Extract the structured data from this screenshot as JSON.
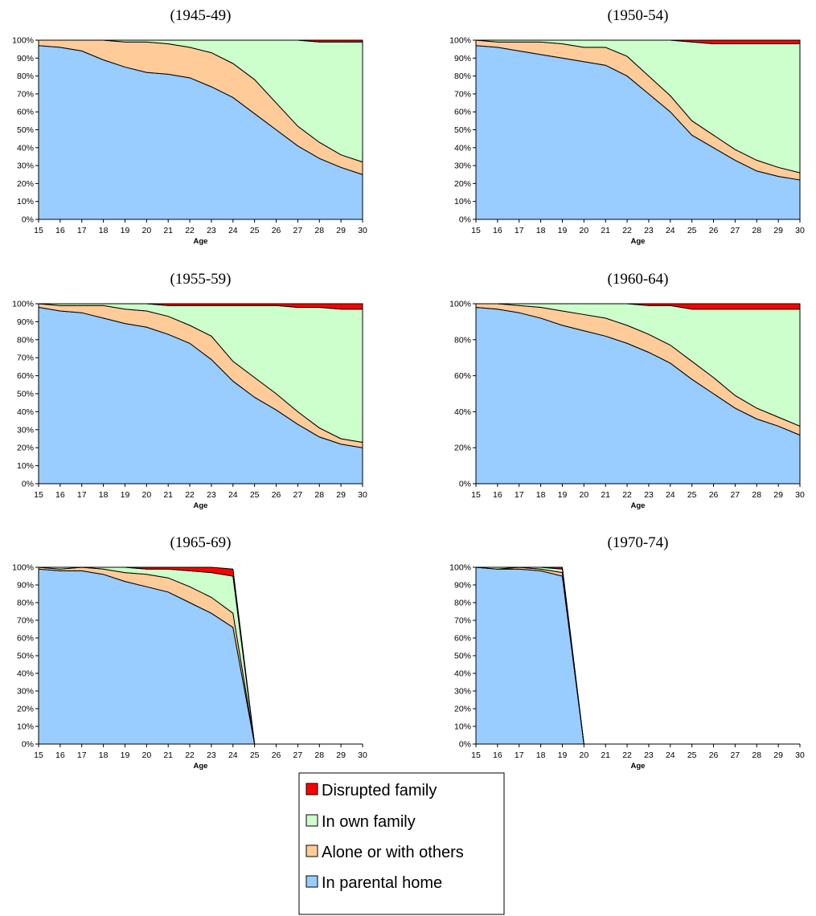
{
  "legend": [
    {
      "label": "Disrupted family",
      "color": "#ff0000"
    },
    {
      "label": "In own family",
      "color": "#ccffcc"
    },
    {
      "label": "Alone or with others",
      "color": "#ffcc99"
    },
    {
      "label": "In parental home",
      "color": "#99ccff"
    }
  ],
  "chart_data": [
    {
      "type": "area",
      "title": "(1945-49)",
      "xlabel": "Age",
      "ylabel": "",
      "xlim": [
        15,
        30
      ],
      "ylim": [
        0,
        100
      ],
      "x_ticks": [
        15,
        16,
        17,
        18,
        19,
        20,
        21,
        22,
        23,
        24,
        25,
        26,
        27,
        28,
        29,
        30
      ],
      "y_ticks": [
        0,
        10,
        20,
        30,
        40,
        50,
        60,
        70,
        80,
        90,
        100
      ],
      "stacked": true,
      "x": [
        15,
        16,
        17,
        18,
        19,
        20,
        21,
        22,
        23,
        24,
        25,
        26,
        27,
        28,
        29,
        30
      ],
      "series": [
        {
          "name": "In parental home",
          "values": [
            97,
            96,
            94,
            89,
            85,
            82,
            81,
            79,
            74,
            68,
            59,
            50,
            41,
            34,
            29,
            25
          ]
        },
        {
          "name": "Alone or with others",
          "values": [
            3,
            4,
            6,
            11,
            14,
            17,
            17,
            17,
            19,
            19,
            19,
            15,
            11,
            9,
            7,
            7
          ]
        },
        {
          "name": "In own family",
          "values": [
            0,
            0,
            0,
            0,
            1,
            1,
            2,
            4,
            7,
            13,
            22,
            35,
            48,
            56,
            63,
            67
          ]
        },
        {
          "name": "Disrupted family",
          "values": [
            0,
            0,
            0,
            0,
            0,
            0,
            0,
            0,
            0,
            0,
            0,
            0,
            0,
            1,
            1,
            1
          ]
        }
      ]
    },
    {
      "type": "area",
      "title": "(1950-54)",
      "xlabel": "Age",
      "ylabel": "",
      "xlim": [
        15,
        30
      ],
      "ylim": [
        0,
        100
      ],
      "x_ticks": [
        15,
        16,
        17,
        18,
        19,
        20,
        21,
        22,
        23,
        24,
        25,
        26,
        27,
        28,
        29,
        30
      ],
      "y_ticks": [
        0,
        10,
        20,
        30,
        40,
        50,
        60,
        70,
        80,
        90,
        100
      ],
      "stacked": true,
      "x": [
        15,
        16,
        17,
        18,
        19,
        20,
        21,
        22,
        23,
        24,
        25,
        26,
        27,
        28,
        29,
        30
      ],
      "series": [
        {
          "name": "In parental home",
          "values": [
            97,
            96,
            94,
            92,
            90,
            88,
            86,
            80,
            70,
            60,
            47,
            40,
            33,
            27,
            24,
            22
          ]
        },
        {
          "name": "Alone or with others",
          "values": [
            3,
            3,
            5,
            7,
            8,
            8,
            10,
            11,
            10,
            9,
            8,
            7,
            6,
            6,
            5,
            4
          ]
        },
        {
          "name": "In own family",
          "values": [
            0,
            1,
            1,
            1,
            2,
            4,
            4,
            9,
            20,
            31,
            44,
            51,
            59,
            65,
            69,
            72
          ]
        },
        {
          "name": "Disrupted family",
          "values": [
            0,
            0,
            0,
            0,
            0,
            0,
            0,
            0,
            0,
            0,
            1,
            2,
            2,
            2,
            2,
            2
          ]
        }
      ]
    },
    {
      "type": "area",
      "title": "(1955-59)",
      "xlabel": "Age",
      "ylabel": "",
      "xlim": [
        15,
        30
      ],
      "ylim": [
        0,
        100
      ],
      "x_ticks": [
        15,
        16,
        17,
        18,
        19,
        20,
        21,
        22,
        23,
        24,
        25,
        26,
        27,
        28,
        29,
        30
      ],
      "y_ticks": [
        0,
        10,
        20,
        30,
        40,
        50,
        60,
        70,
        80,
        90,
        100
      ],
      "stacked": true,
      "x": [
        15,
        16,
        17,
        18,
        19,
        20,
        21,
        22,
        23,
        24,
        25,
        26,
        27,
        28,
        29,
        30
      ],
      "series": [
        {
          "name": "In parental home",
          "values": [
            98,
            96,
            95,
            92,
            89,
            87,
            83,
            78,
            69,
            57,
            48,
            41,
            33,
            26,
            22,
            20
          ]
        },
        {
          "name": "Alone or with others",
          "values": [
            2,
            3,
            4,
            7,
            8,
            9,
            10,
            10,
            13,
            11,
            11,
            9,
            7,
            5,
            3,
            3
          ]
        },
        {
          "name": "In own family",
          "values": [
            0,
            1,
            1,
            1,
            3,
            4,
            6,
            11,
            17,
            31,
            40,
            49,
            58,
            67,
            72,
            74
          ]
        },
        {
          "name": "Disrupted family",
          "values": [
            0,
            0,
            0,
            0,
            0,
            0,
            1,
            1,
            1,
            1,
            1,
            1,
            2,
            2,
            3,
            3
          ]
        }
      ]
    },
    {
      "type": "area",
      "title": "(1960-64)",
      "xlabel": "Age",
      "ylabel": "",
      "xlim": [
        15,
        30
      ],
      "ylim": [
        0,
        100
      ],
      "x_ticks": [
        15,
        16,
        17,
        18,
        19,
        20,
        21,
        22,
        23,
        24,
        25,
        26,
        27,
        28,
        29,
        30
      ],
      "y_ticks": [
        0,
        20,
        40,
        60,
        80,
        100
      ],
      "stacked": true,
      "x": [
        15,
        16,
        17,
        18,
        19,
        20,
        21,
        22,
        23,
        24,
        25,
        26,
        27,
        28,
        29,
        30
      ],
      "series": [
        {
          "name": "In parental home",
          "values": [
            98,
            97,
            95,
            92,
            88,
            85,
            82,
            78,
            73,
            67,
            58,
            50,
            42,
            36,
            32,
            27
          ]
        },
        {
          "name": "Alone or with others",
          "values": [
            2,
            3,
            4,
            6,
            8,
            9,
            10,
            10,
            10,
            10,
            10,
            9,
            7,
            6,
            5,
            5
          ]
        },
        {
          "name": "In own family",
          "values": [
            0,
            0,
            1,
            2,
            4,
            6,
            8,
            12,
            16,
            22,
            29,
            38,
            48,
            55,
            60,
            65
          ]
        },
        {
          "name": "Disrupted family",
          "values": [
            0,
            0,
            0,
            0,
            0,
            0,
            0,
            0,
            1,
            1,
            3,
            3,
            3,
            3,
            3,
            3
          ]
        }
      ]
    },
    {
      "type": "area",
      "title": "(1965-69)",
      "xlabel": "Age",
      "ylabel": "",
      "xlim": [
        15,
        30
      ],
      "ylim": [
        0,
        100
      ],
      "x_ticks": [
        15,
        16,
        17,
        18,
        19,
        20,
        21,
        22,
        23,
        24,
        25,
        26,
        27,
        28,
        29,
        30
      ],
      "y_ticks": [
        0,
        10,
        20,
        30,
        40,
        50,
        60,
        70,
        80,
        90,
        100
      ],
      "stacked": true,
      "x": [
        15,
        16,
        17,
        18,
        19,
        20,
        21,
        22,
        23,
        24,
        25
      ],
      "series": [
        {
          "name": "In parental home",
          "values": [
            99,
            98,
            98,
            96,
            92,
            89,
            86,
            80,
            74,
            66,
            0
          ]
        },
        {
          "name": "Alone or with others",
          "values": [
            1,
            1,
            2,
            3,
            5,
            7,
            8,
            9,
            9,
            8,
            0
          ]
        },
        {
          "name": "In own family",
          "values": [
            0,
            1,
            0,
            1,
            3,
            3,
            5,
            9,
            14,
            21,
            0
          ]
        },
        {
          "name": "Disrupted family",
          "values": [
            0,
            0,
            0,
            0,
            0,
            1,
            1,
            2,
            3,
            4,
            0
          ]
        }
      ]
    },
    {
      "type": "area",
      "title": "(1970-74)",
      "xlabel": "Age",
      "ylabel": "",
      "xlim": [
        15,
        30
      ],
      "ylim": [
        0,
        100
      ],
      "x_ticks": [
        15,
        16,
        17,
        18,
        19,
        20,
        21,
        22,
        23,
        24,
        25,
        26,
        27,
        28,
        29,
        30
      ],
      "y_ticks": [
        0,
        10,
        20,
        30,
        40,
        50,
        60,
        70,
        80,
        90,
        100
      ],
      "stacked": true,
      "x": [
        15,
        16,
        17,
        18,
        19,
        20
      ],
      "series": [
        {
          "name": "In parental home",
          "values": [
            100,
            99,
            99,
            98,
            95,
            0
          ]
        },
        {
          "name": "Alone or with others",
          "values": [
            0,
            0,
            1,
            1,
            2,
            0
          ]
        },
        {
          "name": "In own family",
          "values": [
            0,
            1,
            0,
            1,
            2,
            0
          ]
        },
        {
          "name": "Disrupted family",
          "values": [
            0,
            0,
            0,
            0,
            1,
            0
          ]
        }
      ]
    }
  ]
}
